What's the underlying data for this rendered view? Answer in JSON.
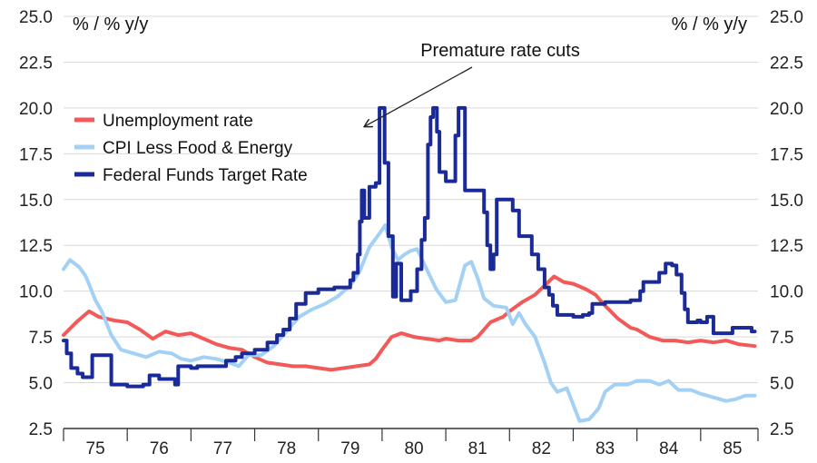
{
  "chart_data": {
    "type": "line",
    "title": "",
    "y_unit_left": "% / % y/y",
    "y_unit_right": "% / % y/y",
    "ylim": [
      2.5,
      25
    ],
    "yticks": [
      2.5,
      5.0,
      7.5,
      10.0,
      12.5,
      15.0,
      17.5,
      20.0,
      22.5,
      25.0
    ],
    "ytick_labels": [
      "2.5",
      "5.0",
      "7.5",
      "10.0",
      "12.5",
      "15.0",
      "17.5",
      "20.0",
      "22.5",
      "25.0"
    ],
    "xlim": [
      1975.0,
      1985.9
    ],
    "year_labels": [
      "75",
      "76",
      "77",
      "78",
      "79",
      "80",
      "81",
      "82",
      "83",
      "84",
      "85"
    ],
    "year_starts": [
      1975,
      1976,
      1977,
      1978,
      1979,
      1980,
      1981,
      1982,
      1983,
      1984,
      1985
    ],
    "annotation": {
      "text": "Premature rate cuts",
      "arrow_to": [
        1979.73,
        19.0
      ]
    },
    "legend_position": "upper-left",
    "series": [
      {
        "name": "Unemployment rate",
        "color": "#f25a5a",
        "step": false,
        "points": [
          [
            1975.0,
            7.6
          ],
          [
            1975.2,
            8.3
          ],
          [
            1975.4,
            8.9
          ],
          [
            1975.55,
            8.6
          ],
          [
            1975.8,
            8.4
          ],
          [
            1976.0,
            8.3
          ],
          [
            1976.2,
            7.9
          ],
          [
            1976.4,
            7.4
          ],
          [
            1976.6,
            7.8
          ],
          [
            1976.8,
            7.6
          ],
          [
            1977.0,
            7.7
          ],
          [
            1977.2,
            7.4
          ],
          [
            1977.4,
            7.1
          ],
          [
            1977.6,
            6.9
          ],
          [
            1977.8,
            6.8
          ],
          [
            1978.0,
            6.4
          ],
          [
            1978.2,
            6.1
          ],
          [
            1978.4,
            6.0
          ],
          [
            1978.6,
            5.9
          ],
          [
            1978.8,
            5.9
          ],
          [
            1979.0,
            5.8
          ],
          [
            1979.2,
            5.7
          ],
          [
            1979.4,
            5.8
          ],
          [
            1979.6,
            5.9
          ],
          [
            1979.8,
            6.0
          ],
          [
            1979.9,
            6.3
          ],
          [
            1980.0,
            6.8
          ],
          [
            1980.15,
            7.5
          ],
          [
            1980.3,
            7.7
          ],
          [
            1980.5,
            7.5
          ],
          [
            1980.7,
            7.4
          ],
          [
            1980.9,
            7.3
          ],
          [
            1981.0,
            7.4
          ],
          [
            1981.2,
            7.3
          ],
          [
            1981.4,
            7.3
          ],
          [
            1981.5,
            7.5
          ],
          [
            1981.7,
            8.3
          ],
          [
            1981.9,
            8.6
          ],
          [
            1982.0,
            8.9
          ],
          [
            1982.2,
            9.4
          ],
          [
            1982.4,
            9.8
          ],
          [
            1982.55,
            10.3
          ],
          [
            1982.7,
            10.8
          ],
          [
            1982.85,
            10.5
          ],
          [
            1983.0,
            10.4
          ],
          [
            1983.2,
            10.1
          ],
          [
            1983.35,
            9.8
          ],
          [
            1983.5,
            9.2
          ],
          [
            1983.7,
            8.5
          ],
          [
            1983.9,
            8.0
          ],
          [
            1984.0,
            7.9
          ],
          [
            1984.2,
            7.5
          ],
          [
            1984.4,
            7.3
          ],
          [
            1984.6,
            7.3
          ],
          [
            1984.8,
            7.2
          ],
          [
            1985.0,
            7.3
          ],
          [
            1985.2,
            7.2
          ],
          [
            1985.4,
            7.3
          ],
          [
            1985.6,
            7.1
          ],
          [
            1985.85,
            7.0
          ]
        ]
      },
      {
        "name": "CPI Less Food & Energy",
        "color": "#a3d1f5",
        "step": false,
        "points": [
          [
            1975.0,
            11.2
          ],
          [
            1975.1,
            11.7
          ],
          [
            1975.25,
            11.3
          ],
          [
            1975.35,
            10.8
          ],
          [
            1975.5,
            9.5
          ],
          [
            1975.6,
            8.9
          ],
          [
            1975.75,
            7.6
          ],
          [
            1975.9,
            6.8
          ],
          [
            1976.1,
            6.6
          ],
          [
            1976.3,
            6.4
          ],
          [
            1976.5,
            6.7
          ],
          [
            1976.7,
            6.6
          ],
          [
            1976.85,
            6.3
          ],
          [
            1977.0,
            6.2
          ],
          [
            1977.2,
            6.4
          ],
          [
            1977.4,
            6.3
          ],
          [
            1977.6,
            6.1
          ],
          [
            1977.75,
            5.9
          ],
          [
            1977.9,
            6.5
          ],
          [
            1978.1,
            6.5
          ],
          [
            1978.3,
            7.0
          ],
          [
            1978.5,
            7.8
          ],
          [
            1978.7,
            8.6
          ],
          [
            1978.9,
            9.0
          ],
          [
            1979.1,
            9.3
          ],
          [
            1979.3,
            9.7
          ],
          [
            1979.5,
            10.3
          ],
          [
            1979.65,
            11.1
          ],
          [
            1979.8,
            12.4
          ],
          [
            1979.95,
            13.1
          ],
          [
            1980.05,
            13.6
          ],
          [
            1980.15,
            12.4
          ],
          [
            1980.25,
            11.7
          ],
          [
            1980.35,
            12.0
          ],
          [
            1980.45,
            12.2
          ],
          [
            1980.55,
            12.3
          ],
          [
            1980.7,
            11.2
          ],
          [
            1980.85,
            10.1
          ],
          [
            1981.0,
            9.4
          ],
          [
            1981.15,
            9.5
          ],
          [
            1981.3,
            11.4
          ],
          [
            1981.4,
            11.6
          ],
          [
            1981.5,
            10.7
          ],
          [
            1981.6,
            9.6
          ],
          [
            1981.75,
            9.2
          ],
          [
            1981.95,
            9.1
          ],
          [
            1982.05,
            8.2
          ],
          [
            1982.15,
            8.8
          ],
          [
            1982.25,
            8.2
          ],
          [
            1982.4,
            7.5
          ],
          [
            1982.55,
            6.1
          ],
          [
            1982.65,
            5.0
          ],
          [
            1982.75,
            4.5
          ],
          [
            1982.9,
            4.7
          ],
          [
            1983.0,
            3.8
          ],
          [
            1983.1,
            2.9
          ],
          [
            1983.25,
            3.0
          ],
          [
            1983.4,
            3.6
          ],
          [
            1983.5,
            4.5
          ],
          [
            1983.65,
            4.9
          ],
          [
            1983.85,
            4.9
          ],
          [
            1984.0,
            5.1
          ],
          [
            1984.2,
            5.1
          ],
          [
            1984.35,
            4.9
          ],
          [
            1984.5,
            5.1
          ],
          [
            1984.65,
            4.6
          ],
          [
            1984.85,
            4.6
          ],
          [
            1985.0,
            4.4
          ],
          [
            1985.2,
            4.2
          ],
          [
            1985.4,
            4.0
          ],
          [
            1985.55,
            4.1
          ],
          [
            1985.7,
            4.3
          ],
          [
            1985.85,
            4.3
          ]
        ]
      },
      {
        "name": "Federal Funds Target Rate",
        "color": "#1a2a99",
        "step": true,
        "points": [
          [
            1975.0,
            7.3
          ],
          [
            1975.05,
            6.6
          ],
          [
            1975.12,
            5.8
          ],
          [
            1975.22,
            5.5
          ],
          [
            1975.3,
            5.3
          ],
          [
            1975.45,
            6.5
          ],
          [
            1975.75,
            4.9
          ],
          [
            1976.0,
            4.8
          ],
          [
            1976.25,
            4.9
          ],
          [
            1976.35,
            5.4
          ],
          [
            1976.5,
            5.2
          ],
          [
            1976.75,
            4.9
          ],
          [
            1976.8,
            5.9
          ],
          [
            1977.0,
            5.8
          ],
          [
            1977.1,
            5.9
          ],
          [
            1977.4,
            5.9
          ],
          [
            1977.55,
            6.2
          ],
          [
            1977.7,
            6.4
          ],
          [
            1977.8,
            6.6
          ],
          [
            1978.0,
            6.8
          ],
          [
            1978.2,
            7.2
          ],
          [
            1978.35,
            7.6
          ],
          [
            1978.45,
            7.9
          ],
          [
            1978.55,
            8.5
          ],
          [
            1978.65,
            9.3
          ],
          [
            1978.8,
            9.9
          ],
          [
            1979.0,
            10.1
          ],
          [
            1979.25,
            10.2
          ],
          [
            1979.5,
            10.6
          ],
          [
            1979.55,
            11.0
          ],
          [
            1979.62,
            12.0
          ],
          [
            1979.65,
            13.8
          ],
          [
            1979.68,
            15.5
          ],
          [
            1979.72,
            14.0
          ],
          [
            1979.8,
            15.7
          ],
          [
            1979.9,
            15.9
          ],
          [
            1979.96,
            20.0
          ],
          [
            1980.04,
            17.0
          ],
          [
            1980.1,
            13.0
          ],
          [
            1980.17,
            9.7
          ],
          [
            1980.22,
            11.5
          ],
          [
            1980.3,
            9.5
          ],
          [
            1980.45,
            10.0
          ],
          [
            1980.55,
            11.2
          ],
          [
            1980.62,
            12.8
          ],
          [
            1980.67,
            14.0
          ],
          [
            1980.72,
            18.0
          ],
          [
            1980.76,
            19.5
          ],
          [
            1980.8,
            20.0
          ],
          [
            1980.86,
            18.7
          ],
          [
            1980.9,
            16.5
          ],
          [
            1981.0,
            16.0
          ],
          [
            1981.15,
            18.5
          ],
          [
            1981.2,
            20.0
          ],
          [
            1981.3,
            15.5
          ],
          [
            1981.6,
            14.3
          ],
          [
            1981.65,
            12.5
          ],
          [
            1981.7,
            11.2
          ],
          [
            1981.75,
            12.0
          ],
          [
            1981.8,
            15.0
          ],
          [
            1982.05,
            14.4
          ],
          [
            1982.15,
            13.0
          ],
          [
            1982.25,
            13.0
          ],
          [
            1982.35,
            12.0
          ],
          [
            1982.45,
            11.2
          ],
          [
            1982.55,
            10.2
          ],
          [
            1982.62,
            9.8
          ],
          [
            1982.68,
            9.2
          ],
          [
            1982.75,
            8.7
          ],
          [
            1983.0,
            8.6
          ],
          [
            1983.15,
            8.7
          ],
          [
            1983.25,
            8.8
          ],
          [
            1983.3,
            9.3
          ],
          [
            1983.5,
            9.4
          ],
          [
            1983.9,
            9.5
          ],
          [
            1984.05,
            10.0
          ],
          [
            1984.1,
            10.5
          ],
          [
            1984.35,
            11.0
          ],
          [
            1984.45,
            11.5
          ],
          [
            1984.55,
            11.4
          ],
          [
            1984.62,
            10.9
          ],
          [
            1984.7,
            9.9
          ],
          [
            1984.75,
            9.0
          ],
          [
            1984.8,
            8.3
          ],
          [
            1984.95,
            8.4
          ],
          [
            1985.0,
            8.3
          ],
          [
            1985.1,
            8.6
          ],
          [
            1985.2,
            7.7
          ],
          [
            1985.5,
            8.0
          ],
          [
            1985.8,
            7.8
          ]
        ]
      }
    ]
  }
}
